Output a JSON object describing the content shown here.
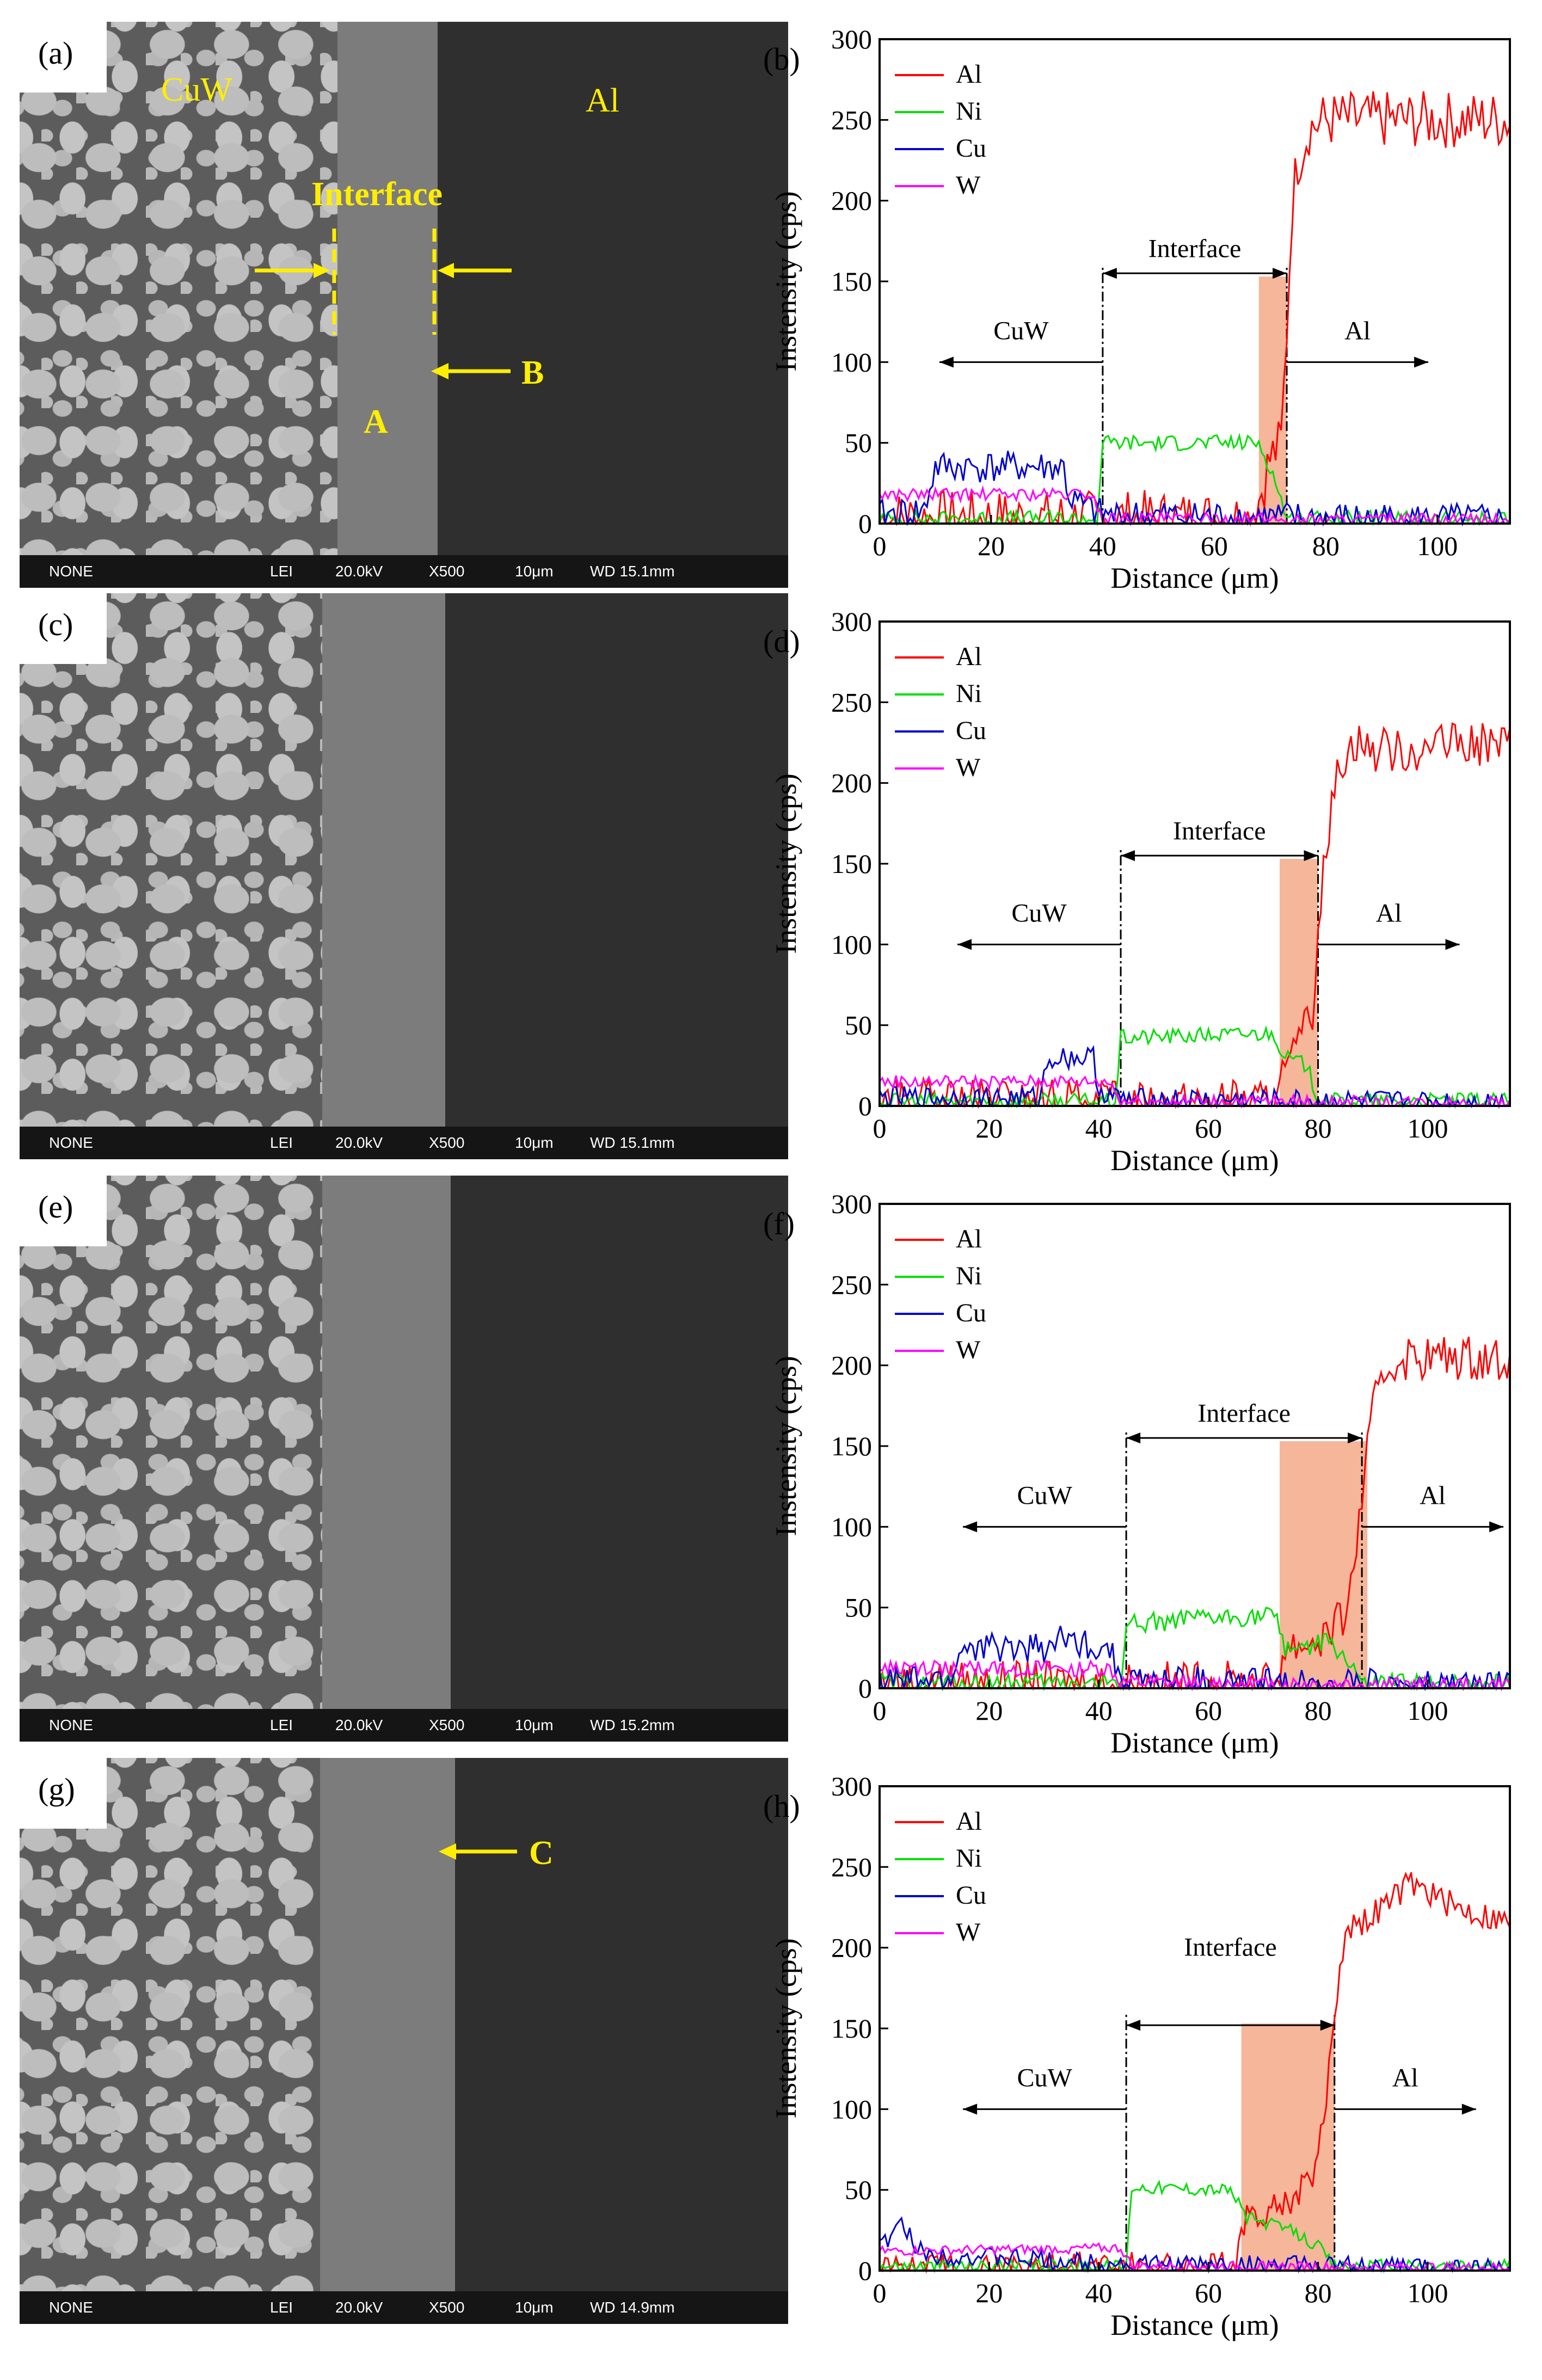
{
  "sem_panels": [
    {
      "label": "(a)",
      "bar": {
        "mode": "NONE",
        "detector": "LEI",
        "voltage": "20.0kV",
        "mag": "X500",
        "scale": "10μm",
        "wd": "WD 15.1mm"
      },
      "annotations": {
        "cuw": "CuW",
        "al": "Al",
        "interface": "Interface",
        "a": "A",
        "b": "B"
      }
    },
    {
      "label": "(c)",
      "bar": {
        "mode": "NONE",
        "detector": "LEI",
        "voltage": "20.0kV",
        "mag": "X500",
        "scale": "10μm",
        "wd": "WD 15.1mm"
      }
    },
    {
      "label": "(e)",
      "bar": {
        "mode": "NONE",
        "detector": "LEI",
        "voltage": "20.0kV",
        "mag": "X500",
        "scale": "10μm",
        "wd": "WD 15.2mm"
      }
    },
    {
      "label": "(g)",
      "bar": {
        "mode": "NONE",
        "detector": "LEI",
        "voltage": "20.0kV",
        "mag": "X500",
        "scale": "10μm",
        "wd": "WD 14.9mm"
      },
      "annotations": {
        "c": "C"
      }
    }
  ],
  "colors": {
    "Al": "#ff0000",
    "Ni": "#00e000",
    "Cu": "#0000d0",
    "W": "#ff00ff",
    "highlight": "#f5b69a",
    "annotation": "#ffee00"
  },
  "chart_data": [
    {
      "label": "(b)",
      "type": "line",
      "xlabel": "Distance (μm)",
      "ylabel": "Instensity (cps)",
      "xlim": [
        0,
        113
      ],
      "ylim": [
        0,
        300
      ],
      "xticks": [
        0,
        20,
        40,
        60,
        80,
        100
      ],
      "yticks": [
        0,
        50,
        100,
        150,
        200,
        250,
        300
      ],
      "legend": [
        "Al",
        "Ni",
        "Cu",
        "W"
      ],
      "legend_position": "top-left",
      "interface": [
        40,
        73
      ],
      "highlight": [
        68,
        73
      ],
      "interface_label": "Interface",
      "left_label": "CuW",
      "right_label": "Al",
      "series": [
        {
          "name": "Al",
          "points": [
            [
              0,
              3
            ],
            [
              40,
              3
            ],
            [
              66,
              3
            ],
            [
              68,
              15
            ],
            [
              70,
              40
            ],
            [
              72,
              50
            ],
            [
              73,
              120
            ],
            [
              74,
              200
            ],
            [
              75,
              225
            ],
            [
              77,
              245
            ],
            [
              80,
              250
            ],
            [
              113,
              250
            ]
          ],
          "noise": 18
        },
        {
          "name": "Ni",
          "points": [
            [
              0,
              3
            ],
            [
              39,
              3
            ],
            [
              40,
              50
            ],
            [
              68,
              50
            ],
            [
              70,
              35
            ],
            [
              72,
              15
            ],
            [
              73,
              3
            ],
            [
              113,
              3
            ]
          ],
          "noise": 5
        },
        {
          "name": "Cu",
          "points": [
            [
              0,
              5
            ],
            [
              8,
              8
            ],
            [
              10,
              35
            ],
            [
              33,
              35
            ],
            [
              34,
              15
            ],
            [
              40,
              5
            ],
            [
              113,
              2
            ]
          ],
          "noise": 10
        },
        {
          "name": "W",
          "points": [
            [
              0,
              18
            ],
            [
              38,
              18
            ],
            [
              40,
              3
            ],
            [
              113,
              2
            ]
          ],
          "noise": 4
        }
      ]
    },
    {
      "label": "(d)",
      "type": "line",
      "xlabel": "Distance (μm)",
      "ylabel": "Instensity (cps)",
      "xlim": [
        0,
        115
      ],
      "ylim": [
        0,
        300
      ],
      "xticks": [
        0,
        20,
        40,
        60,
        80,
        100
      ],
      "yticks": [
        0,
        50,
        100,
        150,
        200,
        250,
        300
      ],
      "legend": [
        "Al",
        "Ni",
        "Cu",
        "W"
      ],
      "legend_position": "top-left",
      "interface": [
        44,
        80
      ],
      "highlight": [
        73,
        80
      ],
      "interface_label": "Interface",
      "left_label": "CuW",
      "right_label": "Al",
      "series": [
        {
          "name": "Al",
          "points": [
            [
              0,
              3
            ],
            [
              44,
              3
            ],
            [
              72,
              3
            ],
            [
              74,
              20
            ],
            [
              77,
              40
            ],
            [
              79,
              60
            ],
            [
              80,
              110
            ],
            [
              82,
              175
            ],
            [
              84,
              215
            ],
            [
              87,
              228
            ],
            [
              90,
              220
            ],
            [
              115,
              225
            ]
          ],
          "noise": 14
        },
        {
          "name": "Ni",
          "points": [
            [
              0,
              3
            ],
            [
              43,
              3
            ],
            [
              44,
              42
            ],
            [
              72,
              45
            ],
            [
              74,
              30
            ],
            [
              78,
              25
            ],
            [
              80,
              3
            ],
            [
              115,
              3
            ]
          ],
          "noise": 5
        },
        {
          "name": "Cu",
          "points": [
            [
              0,
              5
            ],
            [
              29,
              5
            ],
            [
              31,
              30
            ],
            [
              39,
              30
            ],
            [
              40,
              10
            ],
            [
              44,
              4
            ],
            [
              115,
              2
            ]
          ],
          "noise": 7
        },
        {
          "name": "W",
          "points": [
            [
              0,
              15
            ],
            [
              42,
              15
            ],
            [
              44,
              3
            ],
            [
              115,
              2
            ]
          ],
          "noise": 4
        }
      ]
    },
    {
      "label": "(f)",
      "type": "line",
      "xlabel": "Distance (μm)",
      "ylabel": "Instensity (cps)",
      "xlim": [
        0,
        115
      ],
      "ylim": [
        0,
        300
      ],
      "xticks": [
        0,
        20,
        40,
        60,
        80,
        100
      ],
      "yticks": [
        0,
        50,
        100,
        150,
        200,
        250,
        300
      ],
      "legend": [
        "Al",
        "Ni",
        "Cu",
        "W"
      ],
      "legend_position": "top-left",
      "interface": [
        45,
        88
      ],
      "highlight": [
        73,
        89
      ],
      "interface_label": "Interface",
      "left_label": "CuW",
      "right_label": "Al",
      "series": [
        {
          "name": "Al",
          "points": [
            [
              0,
              3
            ],
            [
              45,
              3
            ],
            [
              72,
              3
            ],
            [
              74,
              25
            ],
            [
              80,
              30
            ],
            [
              84,
              40
            ],
            [
              86,
              60
            ],
            [
              88,
              120
            ],
            [
              90,
              170
            ],
            [
              92,
              195
            ],
            [
              95,
              205
            ],
            [
              115,
              205
            ]
          ],
          "noise": 14
        },
        {
          "name": "Ni",
          "points": [
            [
              0,
              3
            ],
            [
              44,
              3
            ],
            [
              45,
              40
            ],
            [
              72,
              45
            ],
            [
              74,
              25
            ],
            [
              82,
              28
            ],
            [
              86,
              15
            ],
            [
              88,
              3
            ],
            [
              115,
              3
            ]
          ],
          "noise": 6
        },
        {
          "name": "Cu",
          "points": [
            [
              0,
              5
            ],
            [
              13,
              5
            ],
            [
              15,
              25
            ],
            [
              30,
              25
            ],
            [
              33,
              30
            ],
            [
              42,
              25
            ],
            [
              44,
              5
            ],
            [
              115,
              2
            ]
          ],
          "noise": 9
        },
        {
          "name": "W",
          "points": [
            [
              0,
              12
            ],
            [
              42,
              12
            ],
            [
              44,
              3
            ],
            [
              115,
              2
            ]
          ],
          "noise": 5
        }
      ]
    },
    {
      "label": "(h)",
      "type": "line",
      "xlabel": "Distance (μm)",
      "ylabel": "Instensity (cps)",
      "xlim": [
        0,
        115
      ],
      "ylim": [
        0,
        300
      ],
      "xticks": [
        0,
        20,
        40,
        60,
        80,
        100
      ],
      "yticks": [
        0,
        50,
        100,
        150,
        200,
        250,
        300
      ],
      "legend": [
        "Al",
        "Ni",
        "Cu",
        "W"
      ],
      "legend_position": "top-left",
      "interface": [
        45,
        83
      ],
      "highlight": [
        66,
        83
      ],
      "interface_label": "Interface",
      "left_label": "CuW",
      "right_label": "Al",
      "series": [
        {
          "name": "Al",
          "points": [
            [
              0,
              3
            ],
            [
              45,
              3
            ],
            [
              65,
              3
            ],
            [
              66,
              30
            ],
            [
              72,
              40
            ],
            [
              76,
              45
            ],
            [
              79,
              60
            ],
            [
              81,
              90
            ],
            [
              83,
              160
            ],
            [
              85,
              212
            ],
            [
              90,
              220
            ],
            [
              97,
              240
            ],
            [
              105,
              225
            ],
            [
              115,
              215
            ]
          ],
          "noise": 9
        },
        {
          "name": "Ni",
          "points": [
            [
              0,
              3
            ],
            [
              45,
              3
            ],
            [
              46,
              52
            ],
            [
              64,
              50
            ],
            [
              67,
              33
            ],
            [
              75,
              25
            ],
            [
              80,
              15
            ],
            [
              83,
              3
            ],
            [
              115,
              3
            ]
          ],
          "noise": 4
        },
        {
          "name": "Cu",
          "points": [
            [
              0,
              15
            ],
            [
              4,
              28
            ],
            [
              8,
              10
            ],
            [
              45,
              4
            ],
            [
              115,
              2
            ]
          ],
          "noise": 6
        },
        {
          "name": "W",
          "points": [
            [
              0,
              12
            ],
            [
              44,
              14
            ],
            [
              46,
              3
            ],
            [
              115,
              2
            ]
          ],
          "noise": 3
        }
      ]
    }
  ]
}
